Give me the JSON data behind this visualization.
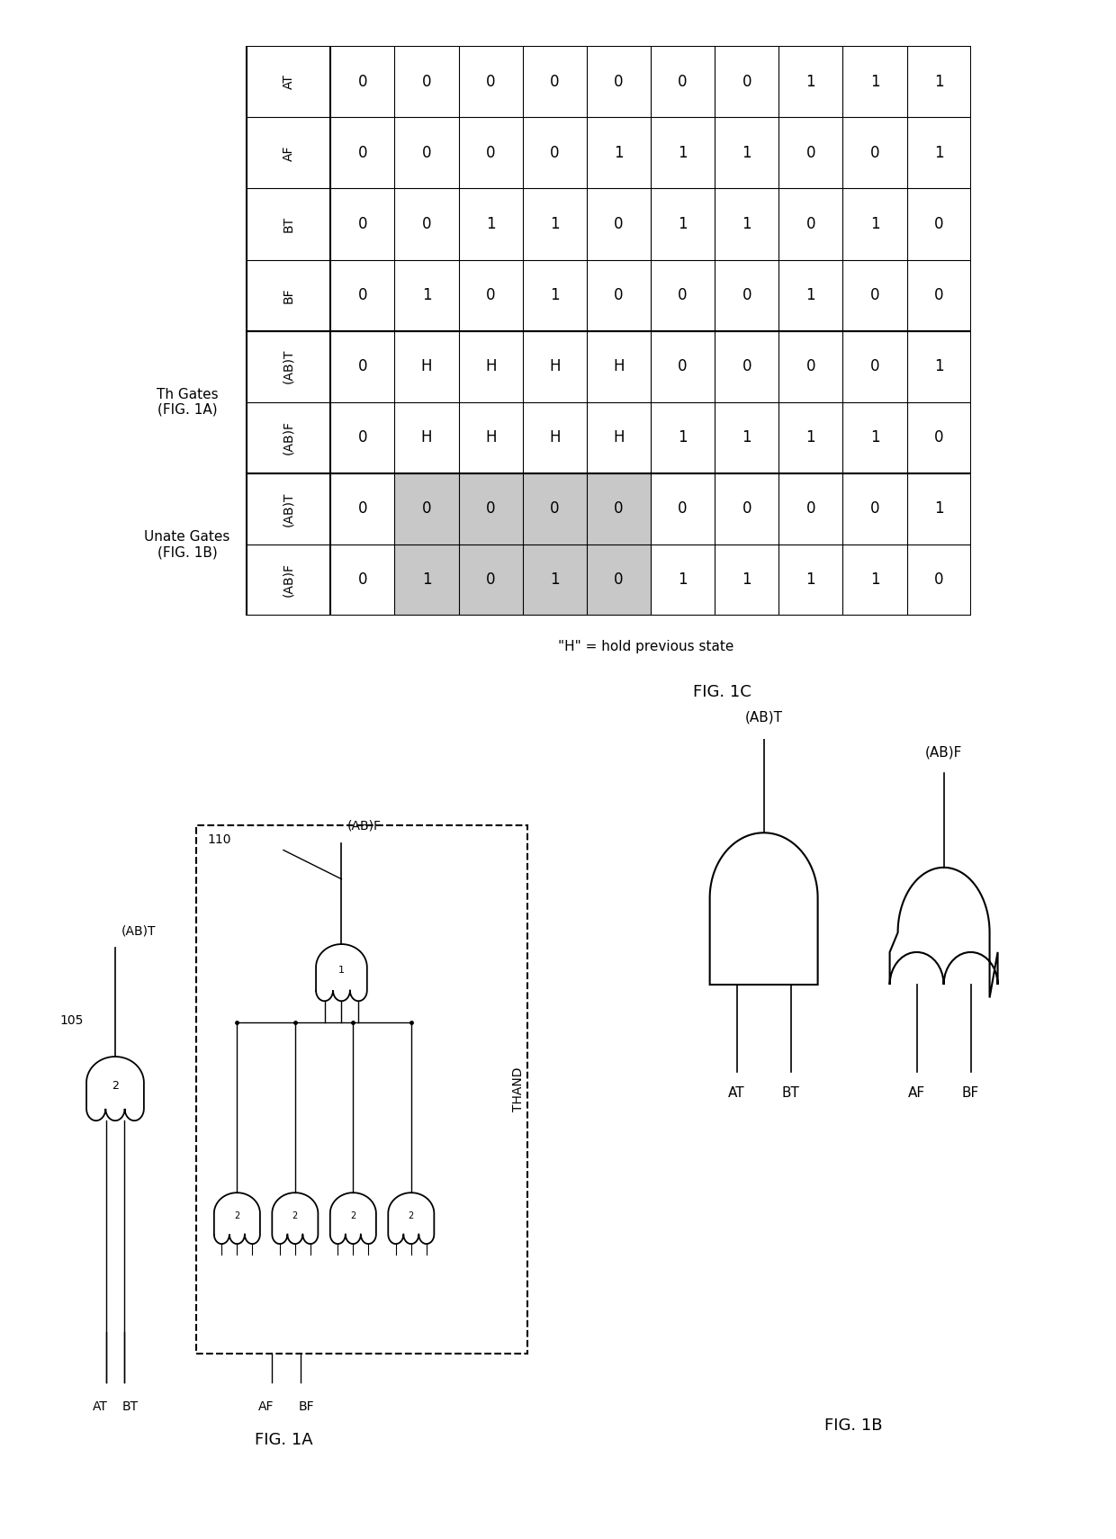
{
  "table_data": [
    [
      "0",
      "0",
      "0",
      "0",
      "0",
      "0",
      "0",
      "0",
      "0",
      "0"
    ],
    [
      "0",
      "0",
      "0",
      "1",
      "1",
      "0",
      "1",
      "0",
      "1",
      "1"
    ],
    [
      "0",
      "0",
      "1",
      "0",
      "0",
      "1",
      "1",
      "0",
      "0",
      "1"
    ],
    [
      "0",
      "0",
      "1",
      "1",
      "0",
      "0",
      "H",
      "H",
      "0",
      "1"
    ],
    [
      "0",
      "1",
      "0",
      "0",
      "0",
      "1",
      "H",
      "H",
      "0",
      "0"
    ],
    [
      "0",
      "1",
      "1",
      "0",
      "0",
      "0",
      "H",
      "H",
      "0",
      "1"
    ],
    [
      "0",
      "1",
      "0",
      "1",
      "1",
      "0",
      "H",
      "H",
      "0",
      "0"
    ],
    [
      "1",
      "0",
      "0",
      "1",
      "0",
      "1",
      "0",
      "0",
      "0",
      "1"
    ],
    [
      "1",
      "0",
      "1",
      "0",
      "0",
      "0",
      "0",
      "0",
      "0",
      "1"
    ],
    [
      "1",
      "1",
      "0",
      "0",
      "1",
      "0",
      "1",
      "0",
      "1",
      "0"
    ]
  ],
  "row_labels": [
    "AT",
    "AF",
    "BT",
    "BF",
    "(AB)T",
    "(AB)F",
    "(AB)T",
    "(AB)F"
  ],
  "col_values": {
    "AT": [
      "0",
      "0",
      "0",
      "0",
      "0",
      "0",
      "0",
      "1",
      "1",
      "1"
    ],
    "AF": [
      "0",
      "0",
      "0",
      "0",
      "1",
      "1",
      "1",
      "0",
      "0",
      "1"
    ],
    "BT": [
      "0",
      "0",
      "1",
      "1",
      "0",
      "0",
      "1",
      "0",
      "1",
      "0"
    ],
    "BF": [
      "0",
      "1",
      "0",
      "1",
      "0",
      "1",
      "0",
      "1",
      "0",
      "0"
    ],
    "th_abt": [
      "0",
      "H",
      "H",
      "H",
      "H",
      "0",
      "0",
      "0",
      "0",
      "1"
    ],
    "th_abf": [
      "0",
      "H",
      "H",
      "H",
      "H",
      "1",
      "1",
      "1",
      "1",
      "0"
    ],
    "un_abt": [
      "0",
      "0",
      "0",
      "0",
      "0",
      "0",
      "0",
      "0",
      "0",
      "1"
    ],
    "un_abf": [
      "0",
      "1",
      "0",
      "1",
      "0",
      "1",
      "1",
      "1",
      "1",
      "0"
    ]
  },
  "shaded_col_range": [
    1,
    4
  ],
  "shade_color": "#c8c8c8",
  "bg_color": "#ffffff",
  "fig1c_note": "\"H\" = hold previous state",
  "fig1c_label": "FIG. 1C",
  "fig1a_label": "FIG. 1A",
  "fig1b_label": "FIG. 1B"
}
